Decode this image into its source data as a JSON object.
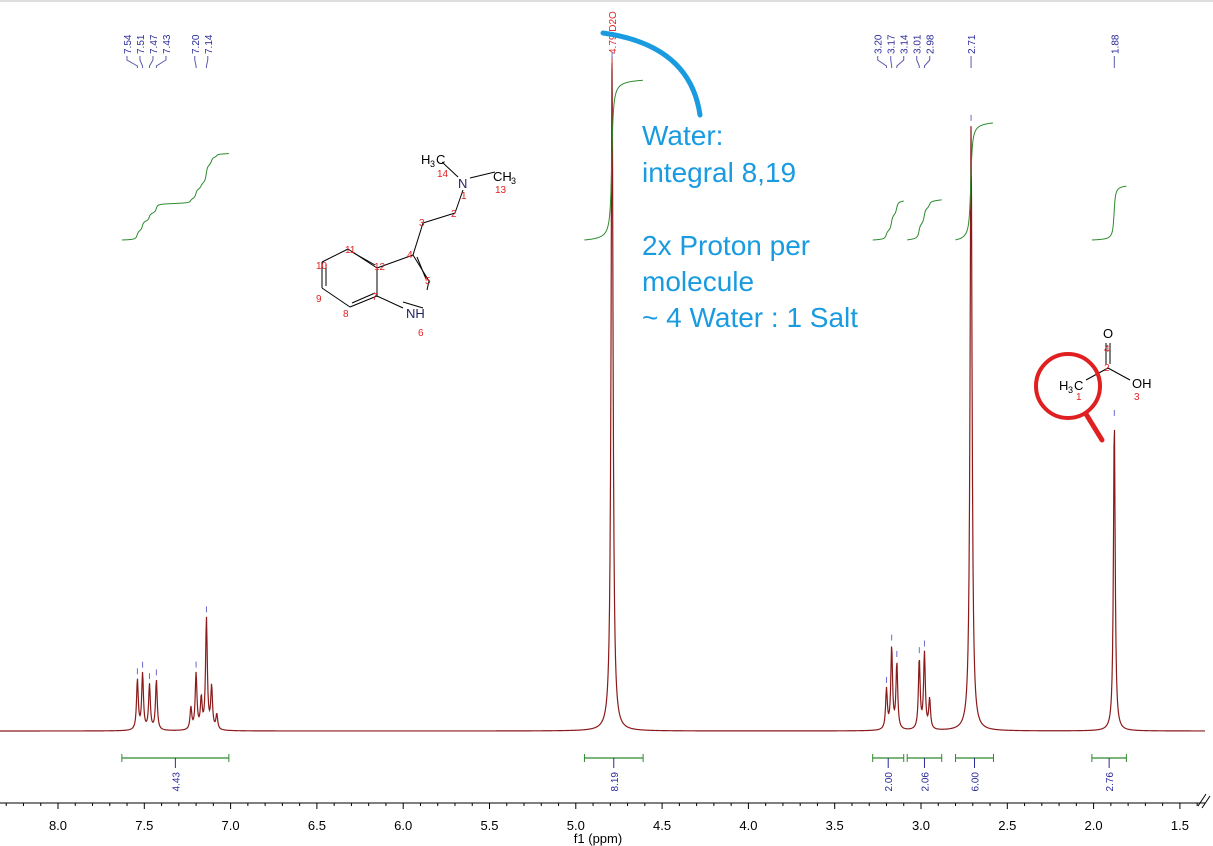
{
  "chart_data": {
    "type": "line",
    "subtype": "1H NMR spectrum",
    "xlabel": "f1 (ppm)",
    "xlim": [
      8.3,
      1.35
    ],
    "x_reversed": true,
    "xticks": [
      "8.0",
      "7.5",
      "7.0",
      "6.5",
      "6.0",
      "5.5",
      "5.0",
      "4.5",
      "4.0",
      "3.5",
      "3.0",
      "2.5",
      "2.0",
      "1.5"
    ],
    "grid": false,
    "colors": {
      "spectrum": "#8b1a1a",
      "integral": "#2e8b2e",
      "peak_label": "#2a2a9a",
      "solvent_label": "#e02020",
      "annotation": "#1a9be0",
      "highlight": "#e02020"
    },
    "peaks": [
      {
        "ppm": 7.54,
        "intensity": 50
      },
      {
        "ppm": 7.51,
        "intensity": 56
      },
      {
        "ppm": 7.47,
        "intensity": 45
      },
      {
        "ppm": 7.43,
        "intensity": 50
      },
      {
        "ppm": 7.23,
        "intensity": 22
      },
      {
        "ppm": 7.2,
        "intensity": 56
      },
      {
        "ppm": 7.17,
        "intensity": 30
      },
      {
        "ppm": 7.14,
        "intensity": 111
      },
      {
        "ppm": 7.11,
        "intensity": 42
      },
      {
        "ppm": 7.08,
        "intensity": 15
      },
      {
        "ppm": 4.79,
        "intensity": 669
      },
      {
        "ppm": 3.2,
        "intensity": 40
      },
      {
        "ppm": 3.17,
        "intensity": 82
      },
      {
        "ppm": 3.14,
        "intensity": 66
      },
      {
        "ppm": 3.01,
        "intensity": 70
      },
      {
        "ppm": 2.98,
        "intensity": 76
      },
      {
        "ppm": 2.95,
        "intensity": 30
      },
      {
        "ppm": 2.71,
        "intensity": 606
      },
      {
        "ppm": 1.88,
        "intensity": 311
      }
    ],
    "peak_labels": [
      {
        "text": "7.54",
        "ppm": 7.54
      },
      {
        "text": "7.51",
        "ppm": 7.51
      },
      {
        "text": "7.47",
        "ppm": 7.47
      },
      {
        "text": "7.43",
        "ppm": 7.43
      },
      {
        "text": "7.20",
        "ppm": 7.2
      },
      {
        "text": "7.14",
        "ppm": 7.14
      },
      {
        "text": "4.79 D2O",
        "ppm": 4.79,
        "solvent": true
      },
      {
        "text": "3.20",
        "ppm": 3.2
      },
      {
        "text": "3.17",
        "ppm": 3.17
      },
      {
        "text": "3.14",
        "ppm": 3.14
      },
      {
        "text": "3.01",
        "ppm": 3.01
      },
      {
        "text": "2.98",
        "ppm": 2.98
      },
      {
        "text": "2.71",
        "ppm": 2.71
      },
      {
        "text": "1.88",
        "ppm": 1.88
      }
    ],
    "integrals": [
      {
        "from": 7.63,
        "to": 7.01,
        "value": "4.43"
      },
      {
        "from": 4.95,
        "to": 4.61,
        "value": "8.19"
      },
      {
        "from": 3.28,
        "to": 3.1,
        "value": "2.00"
      },
      {
        "from": 3.08,
        "to": 2.88,
        "value": "2.06"
      },
      {
        "from": 2.8,
        "to": 2.58,
        "value": "6.00"
      },
      {
        "from": 2.01,
        "to": 1.81,
        "value": "2.76"
      }
    ]
  },
  "annotation": {
    "line1": "Water:",
    "line2": "integral 8,19",
    "line3": "2x Proton per",
    "line4": "molecule",
    "line5": "~ 4 Water : 1 Salt"
  },
  "molecule_dmt": {
    "atoms": {
      "h3c": "H3C",
      "ch3": "CH3",
      "n": "N",
      "nh": "NH"
    },
    "numbers": [
      "1",
      "2",
      "3",
      "4",
      "5",
      "6",
      "7",
      "8",
      "9",
      "10",
      "11",
      "12",
      "13",
      "14"
    ]
  },
  "molecule_acetic": {
    "atoms": {
      "o": "O",
      "oh": "OH",
      "h3c": "H3C"
    },
    "numbers": [
      "1",
      "2",
      "3",
      "4"
    ]
  }
}
